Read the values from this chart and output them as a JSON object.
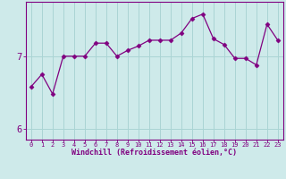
{
  "x": [
    0,
    1,
    2,
    3,
    4,
    5,
    6,
    7,
    8,
    9,
    10,
    11,
    12,
    13,
    14,
    15,
    16,
    17,
    18,
    19,
    20,
    21,
    22,
    23
  ],
  "y": [
    6.58,
    6.75,
    6.48,
    7.0,
    7.0,
    7.0,
    7.18,
    7.18,
    7.0,
    7.08,
    7.14,
    7.22,
    7.22,
    7.22,
    7.32,
    7.52,
    7.58,
    7.24,
    7.16,
    6.97,
    6.97,
    6.88,
    7.44,
    7.22
  ],
  "line_color": "#800080",
  "marker": "D",
  "marker_size": 2.5,
  "bg_color": "#ceeaea",
  "grid_color": "#aad4d4",
  "xlabel": "Windchill (Refroidissement éolien,°C)",
  "yticks": [
    6,
    7
  ],
  "ylim": [
    5.85,
    7.75
  ],
  "xlim": [
    -0.5,
    23.5
  ],
  "xticks": [
    0,
    1,
    2,
    3,
    4,
    5,
    6,
    7,
    8,
    9,
    10,
    11,
    12,
    13,
    14,
    15,
    16,
    17,
    18,
    19,
    20,
    21,
    22,
    23
  ],
  "xlabel_fontsize": 6.0,
  "xtick_fontsize": 5.0,
  "ytick_fontsize": 7.5
}
